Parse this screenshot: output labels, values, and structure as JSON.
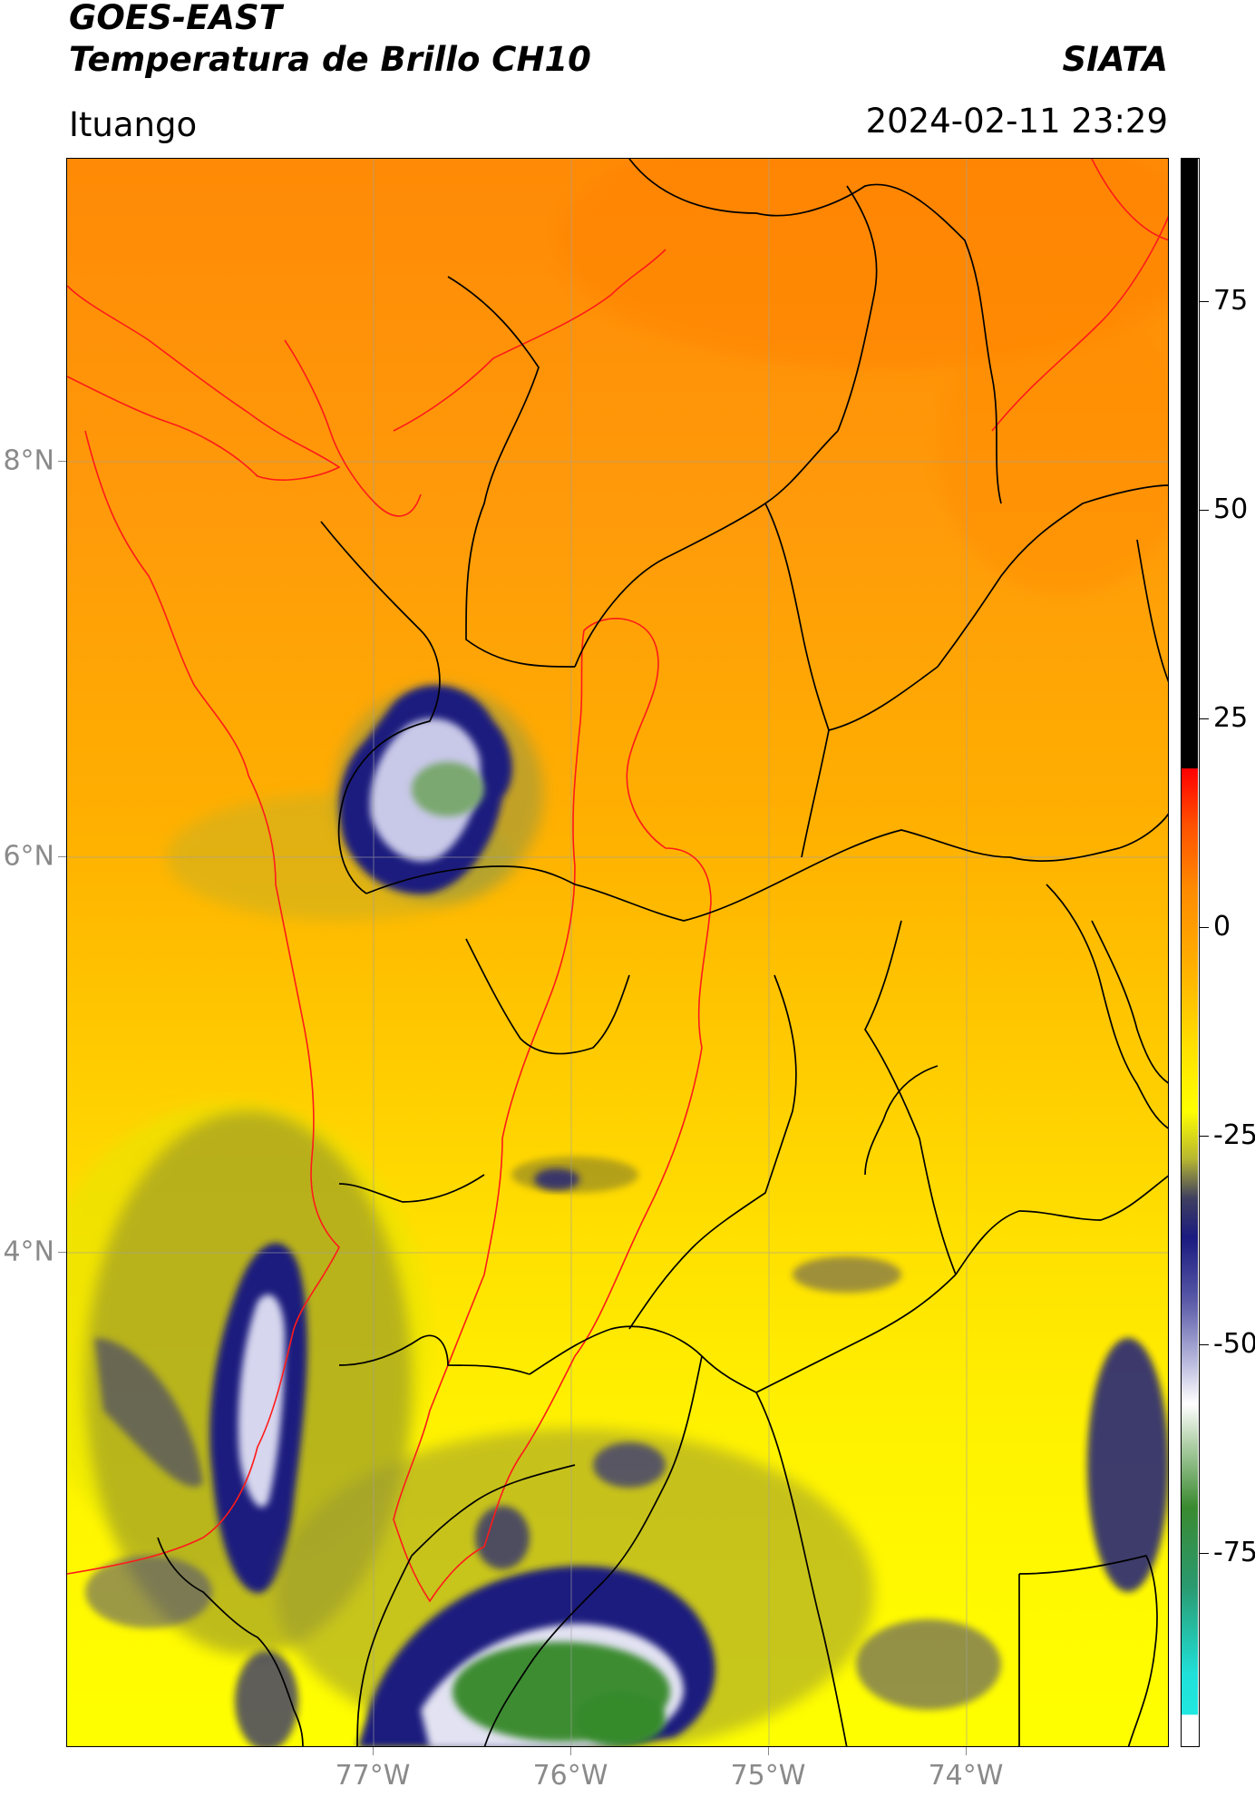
{
  "header": {
    "satellite": "GOES-EAST",
    "product": "Temperatura de Brillo CH10",
    "brand": "SIATA",
    "region": "Ituango",
    "timestamp": "2024-02-11 23:29"
  },
  "map": {
    "lat_labels": [
      {
        "text": "8°N",
        "value": 8
      },
      {
        "text": "6°N",
        "value": 6
      },
      {
        "text": "4°N",
        "value": 4
      }
    ],
    "lon_labels": [
      {
        "text": "77°W",
        "value": -77
      },
      {
        "text": "76°W",
        "value": -76
      },
      {
        "text": "75°W",
        "value": -75
      },
      {
        "text": "74°W",
        "value": -74
      }
    ],
    "colors": {
      "warm_orange": "#ff8c00",
      "orange": "#ffa500",
      "yellow": "#ffff00",
      "olive": "#b8b820",
      "navy": "#1c1c7a",
      "lavender": "#c9c9e6",
      "green": "#3a8a2e",
      "outline_national": "#000000",
      "outline_basin": "#ff0000"
    }
  },
  "colorbar": {
    "ticks": [
      {
        "text": "75",
        "value": 75
      },
      {
        "text": "50",
        "value": 50
      },
      {
        "text": "25",
        "value": 25
      },
      {
        "text": "0",
        "value": 0
      },
      {
        "text": "-25",
        "value": -25
      },
      {
        "text": "-50",
        "value": -50
      },
      {
        "text": "-75",
        "value": -75
      }
    ]
  }
}
